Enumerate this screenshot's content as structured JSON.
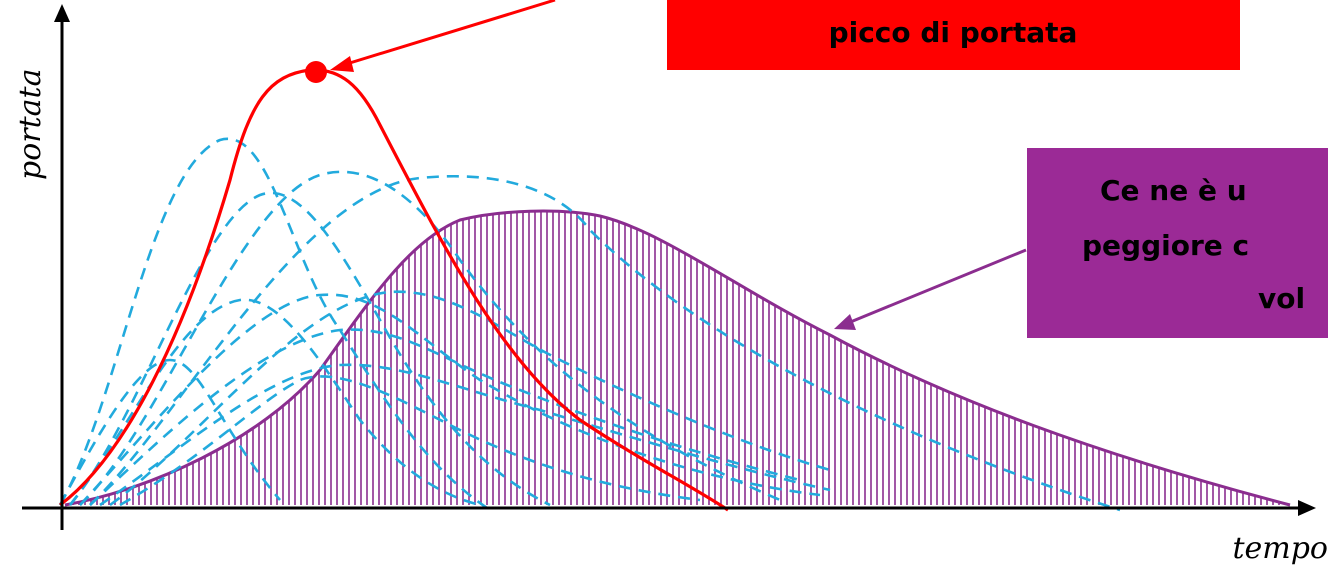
{
  "axes": {
    "y_label": "portata",
    "x_label": "tempo"
  },
  "annotations": {
    "peak_box": {
      "text": "picco di portata",
      "color": "#ff0000"
    },
    "volume_box": {
      "lines": [
        "Ce ne è u",
        "peggiore c",
        "vol"
      ],
      "color": "#9b2a96"
    }
  },
  "colors": {
    "peak_curve": "#ff0000",
    "dashed_curves": "#22aadd",
    "volume_curve": "#8b2d8f",
    "arrow_red": "#ff0000",
    "arrow_purple": "#8b2d8f"
  }
}
